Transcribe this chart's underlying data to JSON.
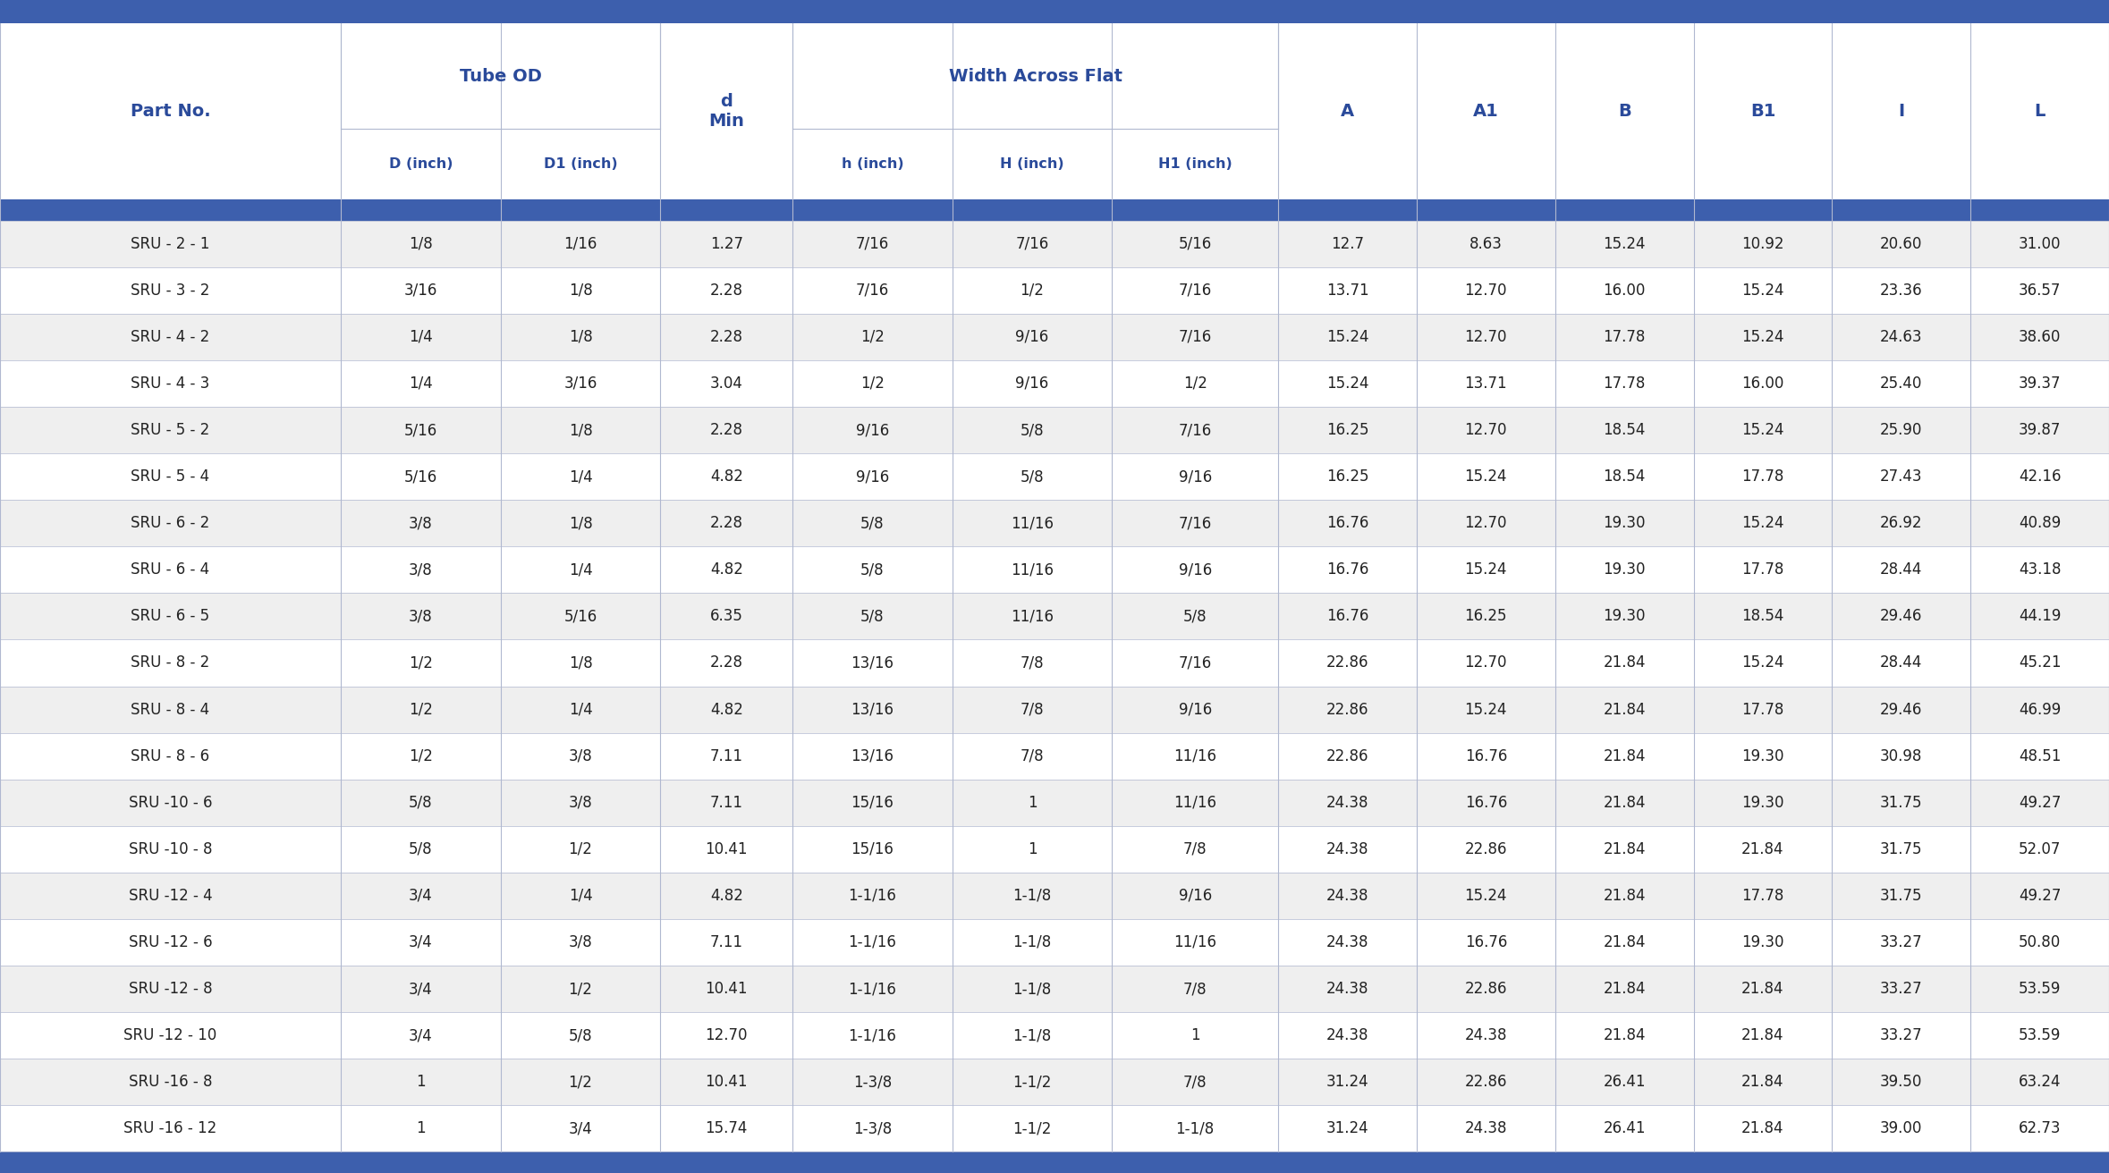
{
  "title_bar_color": "#3d5fad",
  "header_text_color": "#2a4a9a",
  "data_text_color": "#222222",
  "row_odd_color": "#efefef",
  "row_even_color": "#ffffff",
  "border_color": "#b0b8d0",
  "thick_border_color": "#3d5fad",
  "rows": [
    [
      "SRU - 2 - 1",
      "1/8",
      "1/16",
      "1.27",
      "7/16",
      "7/16",
      "5/16",
      "12.7",
      "8.63",
      "15.24",
      "10.92",
      "20.60",
      "31.00"
    ],
    [
      "SRU - 3 - 2",
      "3/16",
      "1/8",
      "2.28",
      "7/16",
      "1/2",
      "7/16",
      "13.71",
      "12.70",
      "16.00",
      "15.24",
      "23.36",
      "36.57"
    ],
    [
      "SRU - 4 - 2",
      "1/4",
      "1/8",
      "2.28",
      "1/2",
      "9/16",
      "7/16",
      "15.24",
      "12.70",
      "17.78",
      "15.24",
      "24.63",
      "38.60"
    ],
    [
      "SRU - 4 - 3",
      "1/4",
      "3/16",
      "3.04",
      "1/2",
      "9/16",
      "1/2",
      "15.24",
      "13.71",
      "17.78",
      "16.00",
      "25.40",
      "39.37"
    ],
    [
      "SRU - 5 - 2",
      "5/16",
      "1/8",
      "2.28",
      "9/16",
      "5/8",
      "7/16",
      "16.25",
      "12.70",
      "18.54",
      "15.24",
      "25.90",
      "39.87"
    ],
    [
      "SRU - 5 - 4",
      "5/16",
      "1/4",
      "4.82",
      "9/16",
      "5/8",
      "9/16",
      "16.25",
      "15.24",
      "18.54",
      "17.78",
      "27.43",
      "42.16"
    ],
    [
      "SRU - 6 - 2",
      "3/8",
      "1/8",
      "2.28",
      "5/8",
      "11/16",
      "7/16",
      "16.76",
      "12.70",
      "19.30",
      "15.24",
      "26.92",
      "40.89"
    ],
    [
      "SRU - 6 - 4",
      "3/8",
      "1/4",
      "4.82",
      "5/8",
      "11/16",
      "9/16",
      "16.76",
      "15.24",
      "19.30",
      "17.78",
      "28.44",
      "43.18"
    ],
    [
      "SRU - 6 - 5",
      "3/8",
      "5/16",
      "6.35",
      "5/8",
      "11/16",
      "5/8",
      "16.76",
      "16.25",
      "19.30",
      "18.54",
      "29.46",
      "44.19"
    ],
    [
      "SRU - 8 - 2",
      "1/2",
      "1/8",
      "2.28",
      "13/16",
      "7/8",
      "7/16",
      "22.86",
      "12.70",
      "21.84",
      "15.24",
      "28.44",
      "45.21"
    ],
    [
      "SRU - 8 - 4",
      "1/2",
      "1/4",
      "4.82",
      "13/16",
      "7/8",
      "9/16",
      "22.86",
      "15.24",
      "21.84",
      "17.78",
      "29.46",
      "46.99"
    ],
    [
      "SRU - 8 - 6",
      "1/2",
      "3/8",
      "7.11",
      "13/16",
      "7/8",
      "11/16",
      "22.86",
      "16.76",
      "21.84",
      "19.30",
      "30.98",
      "48.51"
    ],
    [
      "SRU -10 - 6",
      "5/8",
      "3/8",
      "7.11",
      "15/16",
      "1",
      "11/16",
      "24.38",
      "16.76",
      "21.84",
      "19.30",
      "31.75",
      "49.27"
    ],
    [
      "SRU -10 - 8",
      "5/8",
      "1/2",
      "10.41",
      "15/16",
      "1",
      "7/8",
      "24.38",
      "22.86",
      "21.84",
      "21.84",
      "31.75",
      "52.07"
    ],
    [
      "SRU -12 - 4",
      "3/4",
      "1/4",
      "4.82",
      "1-1/16",
      "1-1/8",
      "9/16",
      "24.38",
      "15.24",
      "21.84",
      "17.78",
      "31.75",
      "49.27"
    ],
    [
      "SRU -12 - 6",
      "3/4",
      "3/8",
      "7.11",
      "1-1/16",
      "1-1/8",
      "11/16",
      "24.38",
      "16.76",
      "21.84",
      "19.30",
      "33.27",
      "50.80"
    ],
    [
      "SRU -12 - 8",
      "3/4",
      "1/2",
      "10.41",
      "1-1/16",
      "1-1/8",
      "7/8",
      "24.38",
      "22.86",
      "21.84",
      "21.84",
      "33.27",
      "53.59"
    ],
    [
      "SRU -12 - 10",
      "3/4",
      "5/8",
      "12.70",
      "1-1/16",
      "1-1/8",
      "1",
      "24.38",
      "24.38",
      "21.84",
      "21.84",
      "33.27",
      "53.59"
    ],
    [
      "SRU -16 - 8",
      "1",
      "1/2",
      "10.41",
      "1-3/8",
      "1-1/2",
      "7/8",
      "31.24",
      "22.86",
      "26.41",
      "21.84",
      "39.50",
      "63.24"
    ],
    [
      "SRU -16 - 12",
      "1",
      "3/4",
      "15.74",
      "1-3/8",
      "1-1/2",
      "1-1/8",
      "31.24",
      "24.38",
      "26.41",
      "21.84",
      "39.00",
      "62.73"
    ]
  ],
  "col_widths_rel": [
    1.6,
    0.75,
    0.75,
    0.62,
    0.75,
    0.75,
    0.78,
    0.65,
    0.65,
    0.65,
    0.65,
    0.65,
    0.65
  ]
}
